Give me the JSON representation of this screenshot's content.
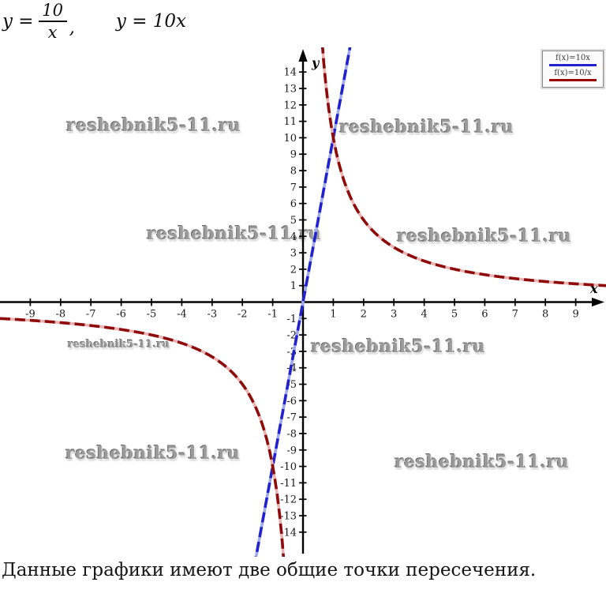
{
  "formula": {
    "lhs": "y =",
    "numerator": "10",
    "denominator": "x",
    "comma": ",",
    "second": "y = 10x"
  },
  "watermark": {
    "text": "reshebnik5-11.ru"
  },
  "legend": {
    "items": [
      {
        "label": "f(x)=10x",
        "color": "#2222cc"
      },
      {
        "label": "f(x)=10/x",
        "color": "#990000"
      }
    ]
  },
  "caption": "Данные графики имеют две общие точки пересечения.",
  "chart_data": {
    "type": "line",
    "title": "",
    "xlabel": "x",
    "ylabel": "y",
    "xlim": [
      -10,
      10
    ],
    "ylim": [
      -15.5,
      15.5
    ],
    "grid": false,
    "legend_position": "top-right",
    "x_ticks": [
      -9,
      -8,
      -7,
      -6,
      -5,
      -4,
      -3,
      -2,
      -1,
      1,
      2,
      3,
      4,
      5,
      6,
      7,
      8,
      9
    ],
    "y_ticks": [
      -14,
      -13,
      -12,
      -11,
      -10,
      -9,
      -8,
      -7,
      -6,
      -5,
      -4,
      -3,
      -2,
      -1,
      1,
      2,
      3,
      4,
      5,
      6,
      7,
      8,
      9,
      10,
      11,
      12,
      13,
      14
    ],
    "series": [
      {
        "name": "f(x)=10x",
        "kind": "linear",
        "k": 10,
        "color": "#2222cc",
        "light_color": "#9fa8ec"
      },
      {
        "name": "f(x)=10/x",
        "kind": "reciprocal",
        "k": 10,
        "color": "#8e0b0b",
        "light_color": "#eab2b2"
      }
    ],
    "intersections": [
      {
        "x": 1,
        "y": 10
      },
      {
        "x": -1,
        "y": -10
      }
    ]
  }
}
